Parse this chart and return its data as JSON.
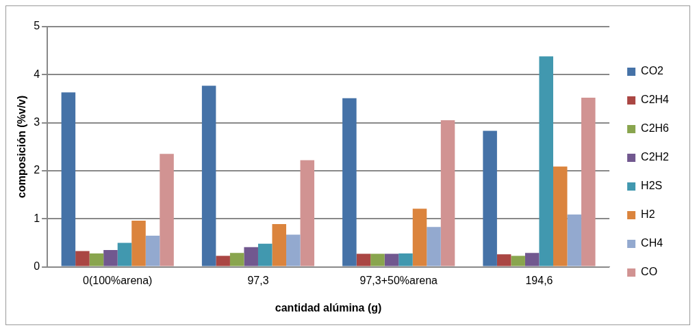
{
  "chart_data": {
    "type": "bar",
    "xlabel": "cantidad alúmina (g)",
    "ylabel": "composición (%v/v)",
    "categories": [
      "0(100%arena)",
      "97,3",
      "97,3+50%arena",
      "194,6"
    ],
    "series": [
      {
        "name": "CO2",
        "color": "#4572a7",
        "values": [
          3.63,
          3.77,
          3.51,
          2.83
        ]
      },
      {
        "name": "C2H4",
        "color": "#aa4643",
        "values": [
          0.33,
          0.23,
          0.27,
          0.26
        ]
      },
      {
        "name": "C2H6",
        "color": "#89a54e",
        "values": [
          0.28,
          0.29,
          0.27,
          0.23
        ]
      },
      {
        "name": "C2H2",
        "color": "#71588f",
        "values": [
          0.35,
          0.41,
          0.27,
          0.29
        ]
      },
      {
        "name": "H2S",
        "color": "#4198af",
        "values": [
          0.5,
          0.48,
          0.28,
          4.38
        ]
      },
      {
        "name": "H2",
        "color": "#db843d",
        "values": [
          0.96,
          0.89,
          1.21,
          2.09
        ]
      },
      {
        "name": "CH4",
        "color": "#93a9cf",
        "values": [
          0.65,
          0.67,
          0.83,
          1.09
        ]
      },
      {
        "name": "CO",
        "color": "#d19392",
        "values": [
          2.35,
          2.22,
          3.05,
          3.52
        ]
      }
    ],
    "ylim": [
      0,
      5
    ],
    "yticks": [
      0,
      1,
      2,
      3,
      4,
      5
    ],
    "grid": "y",
    "legend": "right"
  }
}
